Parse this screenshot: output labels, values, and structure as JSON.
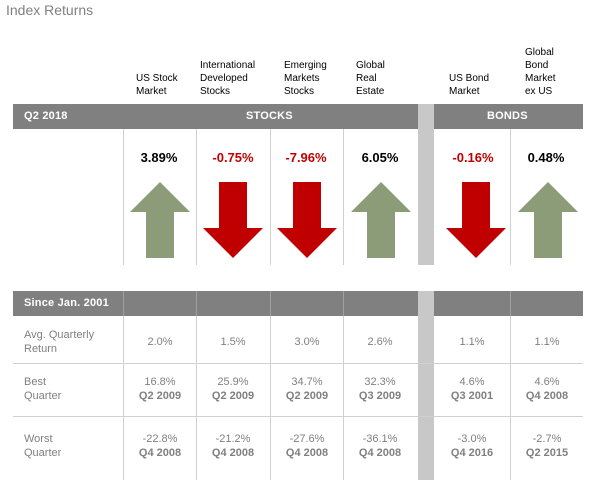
{
  "title": "Index Returns",
  "columns": [
    {
      "label": "US Stock\nMarket"
    },
    {
      "label": "International\nDeveloped\nStocks"
    },
    {
      "label": "Emerging\nMarkets\nStocks"
    },
    {
      "label": "Global\nReal\nEstate"
    },
    {
      "label": "US Bond\nMarket"
    },
    {
      "label": "Global\nBond\nMarket\nex US"
    }
  ],
  "quarter_bar": {
    "period": "Q2 2018",
    "stocks_label": "STOCKS",
    "bonds_label": "BONDS"
  },
  "returns": [
    {
      "value": "3.89%",
      "direction": "up"
    },
    {
      "value": "-0.75%",
      "direction": "down"
    },
    {
      "value": "-7.96%",
      "direction": "down"
    },
    {
      "value": "6.05%",
      "direction": "up"
    },
    {
      "value": "-0.16%",
      "direction": "down"
    },
    {
      "value": "0.48%",
      "direction": "up"
    }
  ],
  "colors": {
    "up_arrow": "#8c9b78",
    "down_arrow": "#c00000",
    "header_bar": "#808080",
    "separator": "#c8c8c8"
  },
  "since_bar": {
    "label": "Since Jan. 2001"
  },
  "rows": [
    {
      "label": "Avg. Quarterly\nReturn",
      "values": [
        "2.0%",
        "1.5%",
        "3.0%",
        "2.6%",
        "1.1%",
        "1.1%"
      ],
      "periods": [
        "",
        "",
        "",
        "",
        "",
        ""
      ]
    },
    {
      "label": "Best\nQuarter",
      "values": [
        "16.8%",
        "25.9%",
        "34.7%",
        "32.3%",
        "4.6%",
        "4.6%"
      ],
      "periods": [
        "Q2 2009",
        "Q2 2009",
        "Q2 2009",
        "Q3 2009",
        "Q3 2001",
        "Q4 2008"
      ]
    },
    {
      "label": "Worst\nQuarter",
      "values": [
        "-22.8%",
        "-21.2%",
        "-27.6%",
        "-36.1%",
        "-3.0%",
        "-2.7%"
      ],
      "periods": [
        "Q4 2008",
        "Q4 2008",
        "Q4 2008",
        "Q4 2008",
        "Q4 2016",
        "Q2 2015"
      ]
    }
  ]
}
